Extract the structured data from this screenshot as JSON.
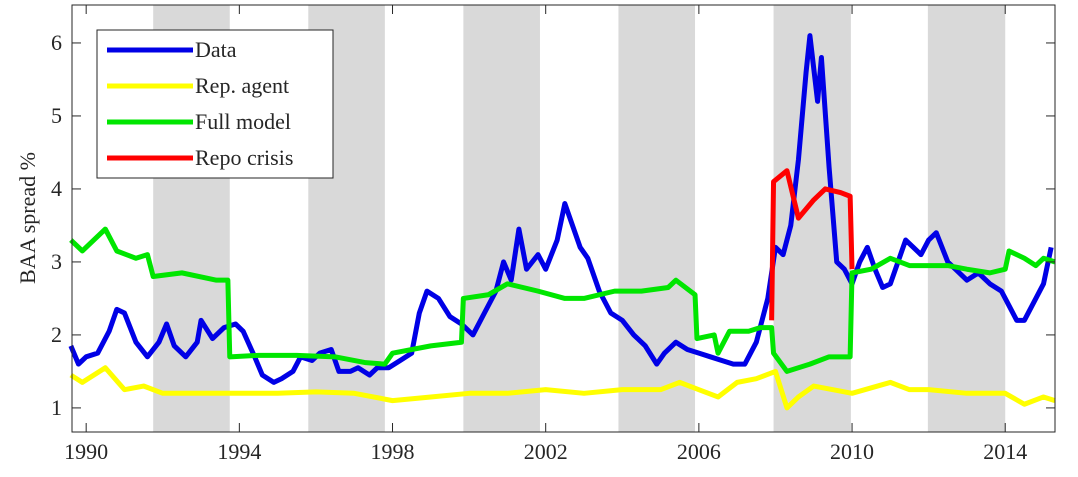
{
  "chart_data": {
    "type": "line",
    "y_label": "BAA spread %",
    "xlim": [
      1989.63,
      2015.3
    ],
    "ylim": [
      0.67,
      6.52
    ],
    "xticks": [
      1990,
      1994,
      1998,
      2002,
      2006,
      2010,
      2014
    ],
    "yticks": [
      1,
      2,
      3,
      4,
      5,
      6
    ],
    "legend": "top-left",
    "shade_color": "#d9d9d9",
    "shaded_regions": [
      [
        1991.75,
        1993.75
      ],
      [
        1995.8,
        1997.8
      ],
      [
        1999.85,
        2001.85
      ],
      [
        2003.9,
        2005.9
      ],
      [
        2007.95,
        2009.97
      ],
      [
        2011.98,
        2014.0
      ]
    ],
    "series": [
      {
        "name": "Data",
        "color": "#0000e6",
        "x": [
          1989.6,
          1989.8,
          1990.0,
          1990.3,
          1990.6,
          1990.8,
          1991.0,
          1991.3,
          1991.6,
          1991.9,
          1992.1,
          1992.3,
          1992.6,
          1992.9,
          1993.0,
          1993.3,
          1993.6,
          1993.9,
          1994.1,
          1994.4,
          1994.6,
          1994.9,
          1995.1,
          1995.4,
          1995.6,
          1995.9,
          1996.1,
          1996.4,
          1996.6,
          1996.9,
          1997.1,
          1997.4,
          1997.6,
          1997.9,
          1998.2,
          1998.5,
          1998.7,
          1998.9,
          1999.2,
          1999.5,
          1999.8,
          2000.1,
          2000.4,
          2000.7,
          2000.9,
          2001.1,
          2001.3,
          2001.5,
          2001.8,
          2002.0,
          2002.3,
          2002.5,
          2002.7,
          2002.9,
          2003.1,
          2003.4,
          2003.7,
          2004.0,
          2004.3,
          2004.6,
          2004.9,
          2005.1,
          2005.4,
          2005.7,
          2006.0,
          2006.3,
          2006.6,
          2006.9,
          2007.2,
          2007.5,
          2007.8,
          2008.0,
          2008.2,
          2008.4,
          2008.6,
          2008.8,
          2008.9,
          2009.1,
          2009.2,
          2009.4,
          2009.6,
          2009.8,
          2010.0,
          2010.2,
          2010.4,
          2010.6,
          2010.8,
          2011.0,
          2011.2,
          2011.4,
          2011.6,
          2011.8,
          2012.0,
          2012.2,
          2012.5,
          2012.7,
          2013.0,
          2013.3,
          2013.6,
          2013.9,
          2014.1,
          2014.3,
          2014.5,
          2014.8,
          2015.0,
          2015.2
        ],
        "values": [
          1.85,
          1.6,
          1.7,
          1.75,
          2.05,
          2.35,
          2.3,
          1.9,
          1.7,
          1.9,
          2.15,
          1.85,
          1.7,
          1.9,
          2.2,
          1.95,
          2.1,
          2.15,
          2.05,
          1.7,
          1.45,
          1.35,
          1.4,
          1.5,
          1.7,
          1.65,
          1.75,
          1.8,
          1.5,
          1.5,
          1.55,
          1.45,
          1.55,
          1.55,
          1.65,
          1.75,
          2.3,
          2.6,
          2.5,
          2.25,
          2.15,
          2.0,
          2.3,
          2.6,
          3.0,
          2.75,
          3.45,
          2.9,
          3.1,
          2.9,
          3.3,
          3.8,
          3.5,
          3.2,
          3.05,
          2.6,
          2.3,
          2.2,
          2.0,
          1.85,
          1.6,
          1.75,
          1.9,
          1.8,
          1.75,
          1.7,
          1.65,
          1.6,
          1.6,
          1.9,
          2.5,
          3.2,
          3.1,
          3.5,
          4.4,
          5.6,
          6.1,
          5.2,
          5.8,
          4.3,
          3.0,
          2.9,
          2.7,
          3.0,
          3.2,
          2.9,
          2.65,
          2.7,
          3.0,
          3.3,
          3.2,
          3.1,
          3.3,
          3.4,
          3.0,
          2.9,
          2.75,
          2.85,
          2.7,
          2.6,
          2.4,
          2.2,
          2.2,
          2.5,
          2.7,
          3.2
        ]
      },
      {
        "name": "Rep. agent",
        "color": "#ffff00",
        "x": [
          1989.6,
          1989.9,
          1990.5,
          1991.0,
          1991.5,
          1992.0,
          1993.0,
          1994.0,
          1995.0,
          1996.0,
          1997.0,
          1998.0,
          1999.0,
          2000.0,
          2001.0,
          2002.0,
          2003.0,
          2004.0,
          2005.0,
          2005.5,
          2006.0,
          2006.5,
          2007.0,
          2007.5,
          2008.0,
          2008.3,
          2008.6,
          2009.0,
          2009.5,
          2010.0,
          2011.0,
          2011.5,
          2012.0,
          2013.0,
          2014.0,
          2014.5,
          2015.0,
          2015.3
        ],
        "values": [
          1.45,
          1.35,
          1.55,
          1.25,
          1.3,
          1.2,
          1.2,
          1.2,
          1.2,
          1.22,
          1.2,
          1.1,
          1.15,
          1.2,
          1.2,
          1.25,
          1.2,
          1.25,
          1.25,
          1.35,
          1.25,
          1.15,
          1.35,
          1.4,
          1.5,
          1.0,
          1.15,
          1.3,
          1.25,
          1.2,
          1.35,
          1.25,
          1.25,
          1.2,
          1.2,
          1.05,
          1.15,
          1.1
        ]
      },
      {
        "name": "Full model",
        "color": "#00e600",
        "x": [
          1989.6,
          1989.9,
          1990.5,
          1990.8,
          1991.3,
          1991.6,
          1991.75,
          1992.5,
          1993.4,
          1993.7,
          1993.75,
          1994.5,
          1995.5,
          1996.5,
          1997.3,
          1997.8,
          1998.0,
          1999.0,
          1999.8,
          1999.85,
          2000.5,
          2001.0,
          2001.8,
          2002.5,
          2003.0,
          2003.8,
          2004.5,
          2005.2,
          2005.4,
          2005.9,
          2005.95,
          2006.4,
          2006.5,
          2006.8,
          2007.3,
          2007.6,
          2007.9,
          2007.95,
          2008.3,
          2008.9,
          2009.4,
          2009.95,
          2010.0,
          2010.5,
          2011.0,
          2011.5,
          2012.5,
          2013.0,
          2013.6,
          2014.0,
          2014.1,
          2014.5,
          2014.8,
          2015.0,
          2015.3
        ],
        "values": [
          3.3,
          3.15,
          3.45,
          3.15,
          3.05,
          3.1,
          2.8,
          2.85,
          2.75,
          2.75,
          1.7,
          1.72,
          1.72,
          1.7,
          1.62,
          1.6,
          1.75,
          1.85,
          1.9,
          2.5,
          2.55,
          2.7,
          2.6,
          2.5,
          2.5,
          2.6,
          2.6,
          2.65,
          2.75,
          2.55,
          1.95,
          2.0,
          1.75,
          2.05,
          2.05,
          2.1,
          2.1,
          1.75,
          1.5,
          1.6,
          1.7,
          1.7,
          2.85,
          2.9,
          3.05,
          2.95,
          2.95,
          2.9,
          2.85,
          2.9,
          3.15,
          3.05,
          2.95,
          3.05,
          3.0
        ]
      },
      {
        "name": "Repo crisis",
        "color": "#ff0000",
        "x": [
          1989.6,
          2007.9,
          2007.95,
          2008.3,
          2008.6,
          2009.0,
          2009.3,
          2009.7,
          2009.95,
          2010.0
        ],
        "values": [
          null,
          2.2,
          4.1,
          4.25,
          3.6,
          3.85,
          4.0,
          3.95,
          3.9,
          2.9
        ]
      }
    ]
  }
}
